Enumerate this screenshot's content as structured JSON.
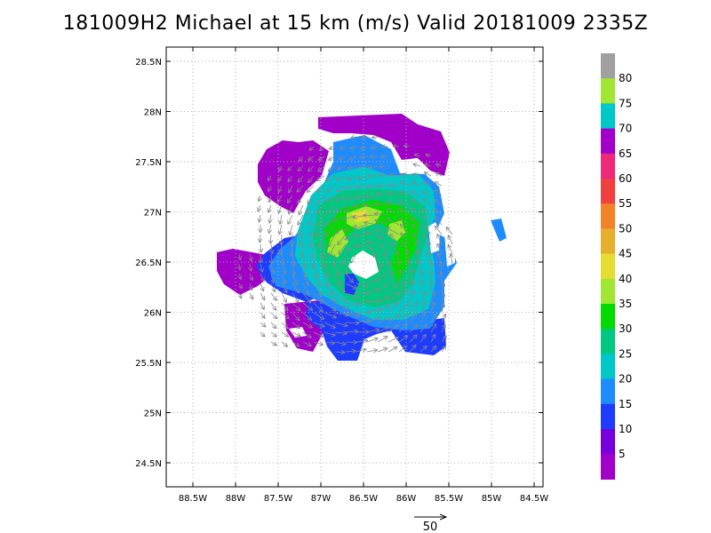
{
  "title": "181009H2 Michael at 15 km (m/s) Valid 20181009  2335Z",
  "lat_labels": [
    "28.5N",
    "28N",
    "27.5N",
    "27N",
    "26.5N",
    "26N",
    "25.5N",
    "25N",
    "24.5N"
  ],
  "lon_labels": [
    "88.5W",
    "88W",
    "87.5W",
    "87W",
    "86.5W",
    "86W",
    "85.5W",
    "85W",
    "84.5W"
  ],
  "vector_key": "50",
  "colorbar": {
    "labels": [
      "80",
      "75",
      "70",
      "65",
      "60",
      "55",
      "50",
      "45",
      "40",
      "35",
      "30",
      "25",
      "20",
      "15",
      "10",
      "5"
    ],
    "colors": [
      "#a0a0a0",
      "#a0e632",
      "#00c8c8",
      "#a000c8",
      "#f0287a",
      "#f04040",
      "#f08228",
      "#e6af2d",
      "#e6dc32",
      "#a0e632",
      "#00dc00",
      "#00c882",
      "#00c8c8",
      "#1e8cff",
      "#1e3cff",
      "#7800dc",
      "#a000c8"
    ]
  },
  "field_colors": {
    "purple": "#a000c8",
    "violet": "#7800dc",
    "blue": "#1e3cff",
    "lightblue": "#1e8cff",
    "cyan": "#00c8c8",
    "teal": "#00c882",
    "green": "#00dc00",
    "lime": "#a0e632",
    "yellow": "#e6dc32"
  }
}
